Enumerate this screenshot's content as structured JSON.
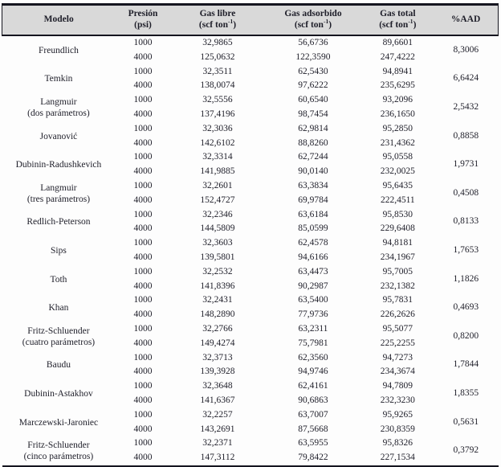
{
  "chart_data": {
    "type": "table",
    "title": "",
    "columns": [
      {
        "label": "Modelo",
        "sub": ""
      },
      {
        "label": "Presión",
        "sub": "(psi)"
      },
      {
        "label": "Gas libre",
        "unit_pre": "(scf ton",
        "unit_sup": "-1",
        "unit_post": ")"
      },
      {
        "label": "Gas adsorbido",
        "unit_pre": "(scf ton",
        "unit_sup": "-1",
        "unit_post": ")"
      },
      {
        "label": "Gas total",
        "unit_pre": "(scf ton",
        "unit_sup": "-1",
        "unit_post": ")"
      },
      {
        "label": "%AAD",
        "sub": ""
      }
    ],
    "groups": [
      {
        "model": [
          "Freundlich"
        ],
        "aad": "8,3006",
        "rows": [
          [
            "1000",
            "32,9865",
            "56,6736",
            "89,6601"
          ],
          [
            "4000",
            "125,0632",
            "122,3590",
            "247,4222"
          ]
        ]
      },
      {
        "model": [
          "Temkin"
        ],
        "aad": "6,6424",
        "rows": [
          [
            "1000",
            "32,3511",
            "62,5430",
            "94,8941"
          ],
          [
            "4000",
            "138,0074",
            "97,6222",
            "235,6295"
          ]
        ]
      },
      {
        "model": [
          "Langmuir",
          "(dos parámetros)"
        ],
        "aad": "2,5432",
        "rows": [
          [
            "1000",
            "32,5556",
            "60,6540",
            "93,2096"
          ],
          [
            "4000",
            "137,4196",
            "98,7454",
            "236,1650"
          ]
        ]
      },
      {
        "model": [
          "Jovanović"
        ],
        "aad": "0,8858",
        "rows": [
          [
            "1000",
            "32,3036",
            "62,9814",
            "95,2850"
          ],
          [
            "4000",
            "142,6102",
            "88,8260",
            "231,4362"
          ]
        ]
      },
      {
        "model": [
          "Dubinin-Radushkevich"
        ],
        "aad": "1,9731",
        "rows": [
          [
            "1000",
            "32,3314",
            "62,7244",
            "95,0558"
          ],
          [
            "4000",
            "141,9885",
            "90,0140",
            "232,0025"
          ]
        ]
      },
      {
        "model": [
          "Langmuir",
          "(tres parámetros)"
        ],
        "aad": "0,4508",
        "rows": [
          [
            "1000",
            "32,2601",
            "63,3834",
            "95,6435"
          ],
          [
            "4000",
            "152,4727",
            "69,9784",
            "222,4511"
          ]
        ]
      },
      {
        "model": [
          "Redlich-Peterson"
        ],
        "aad": "0,8133",
        "rows": [
          [
            "1000",
            "32,2346",
            "63,6184",
            "95,8530"
          ],
          [
            "4000",
            "144,5809",
            "85,0599",
            "229,6408"
          ]
        ]
      },
      {
        "model": [
          "Sips"
        ],
        "aad": "1,7653",
        "rows": [
          [
            "1000",
            "32,3603",
            "62,4578",
            "94,8181"
          ],
          [
            "4000",
            "139,5801",
            "94,6166",
            "234,1967"
          ]
        ]
      },
      {
        "model": [
          "Toth"
        ],
        "aad": "1,1826",
        "rows": [
          [
            "1000",
            "32,2532",
            "63,4473",
            "95,7005"
          ],
          [
            "4000",
            "141,8396",
            "90,2987",
            "232,1382"
          ]
        ]
      },
      {
        "model": [
          "Khan"
        ],
        "aad": "0,4693",
        "rows": [
          [
            "1000",
            "32,2431",
            "63,5400",
            "95,7831"
          ],
          [
            "4000",
            "148,2890",
            "77,9736",
            "226,2626"
          ]
        ]
      },
      {
        "model": [
          "Fritz-Schluender",
          "(cuatro parámetros)"
        ],
        "aad": "0,8200",
        "rows": [
          [
            "1000",
            "32,2766",
            "63,2311",
            "95,5077"
          ],
          [
            "4000",
            "149,4274",
            "75,7981",
            "225,2255"
          ]
        ]
      },
      {
        "model": [
          "Baudu"
        ],
        "aad": "1,7844",
        "rows": [
          [
            "1000",
            "32,3713",
            "62,3560",
            "94,7273"
          ],
          [
            "4000",
            "139,3928",
            "94,9746",
            "234,3674"
          ]
        ]
      },
      {
        "model": [
          "Dubinin-Astakhov"
        ],
        "aad": "1,8355",
        "rows": [
          [
            "1000",
            "32,3648",
            "62,4161",
            "94,7809"
          ],
          [
            "4000",
            "141,6367",
            "90,6863",
            "232,3230"
          ]
        ]
      },
      {
        "model": [
          "Marczewski-Jaroniec"
        ],
        "aad": "0,5631",
        "rows": [
          [
            "1000",
            "32,2257",
            "63,7007",
            "95,9265"
          ],
          [
            "4000",
            "143,2691",
            "87,5668",
            "230,8359"
          ]
        ]
      },
      {
        "model": [
          "Fritz-Schluender",
          "(cinco parámetros)"
        ],
        "aad": "0,3792",
        "rows": [
          [
            "1000",
            "32,2371",
            "63,5955",
            "95,8326"
          ],
          [
            "4000",
            "147,3112",
            "79,8422",
            "227,1534"
          ]
        ]
      }
    ]
  },
  "colors": {
    "header_bg": "#d9d9d9",
    "rule": "#15151f",
    "text": "#1e1e29",
    "page_bg": "#fdfdfd"
  }
}
